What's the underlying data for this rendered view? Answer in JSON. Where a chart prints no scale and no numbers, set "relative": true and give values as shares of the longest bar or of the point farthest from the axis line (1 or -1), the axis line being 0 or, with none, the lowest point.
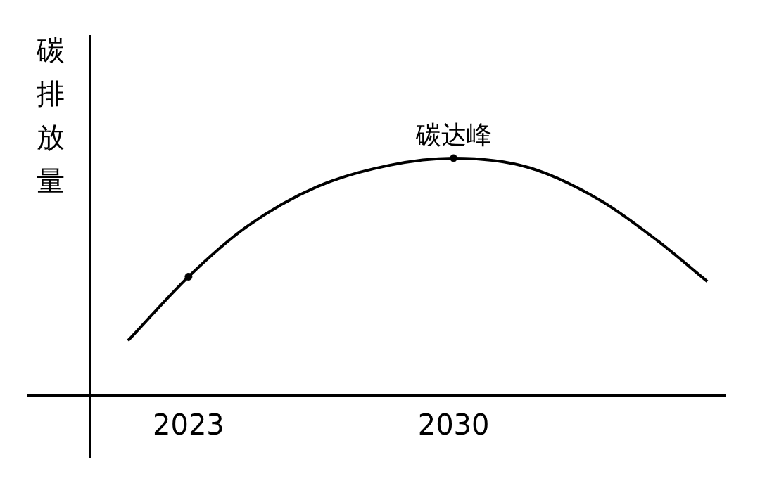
{
  "chart_data": {
    "type": "line",
    "ylabel": "碳排放量",
    "relative": true,
    "xlim": [
      2020.4,
      2037.2
    ],
    "xticks": [
      2023,
      2030
    ],
    "grid": false,
    "legend": false,
    "annotations": [
      {
        "text": "碳达峰",
        "x": 2030,
        "y": 1
      }
    ],
    "series": [
      {
        "color": "#000000",
        "marker": "none",
        "x": [
          2021.4,
          2023,
          2024.53,
          2026.4,
          2028.3,
          2030,
          2032.0,
          2033.9,
          2035.4,
          2036.7
        ],
        "values": [
          0.23,
          0.5,
          0.71,
          0.88,
          0.97,
          1,
          0.96,
          0.82,
          0.65,
          0.48
        ]
      },
      {
        "type": "scatter",
        "color": "#000000",
        "marker": "circle",
        "x": [
          2023,
          2030
        ],
        "values": [
          0.5,
          1
        ]
      }
    ]
  }
}
